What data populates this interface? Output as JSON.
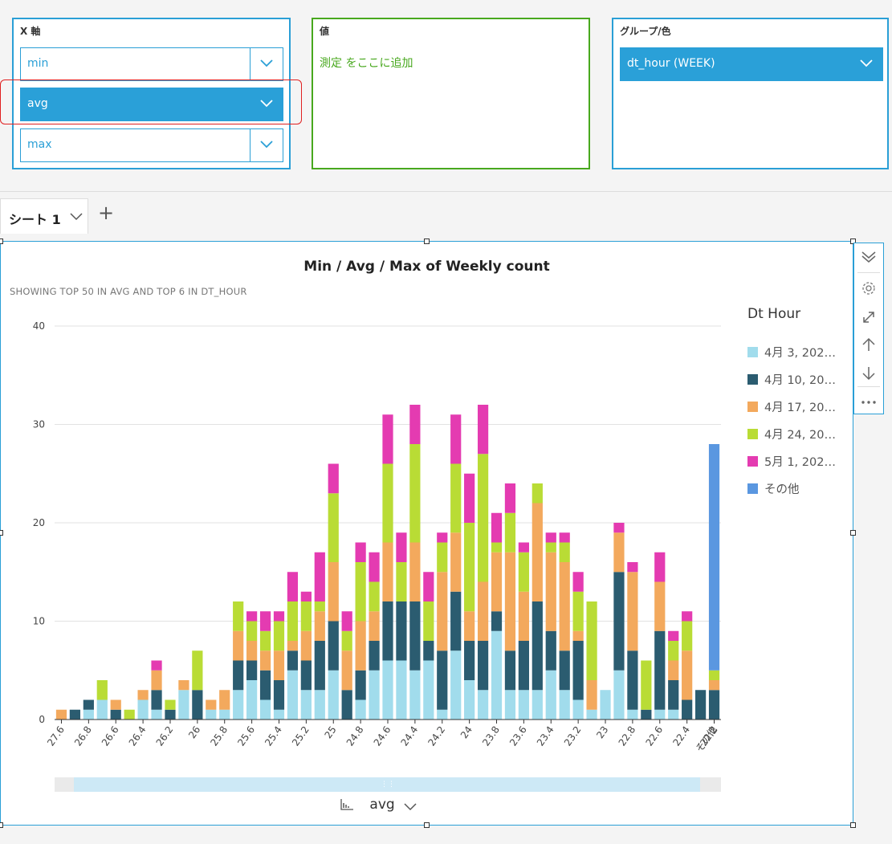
{
  "wells": {
    "xaxis": {
      "title": "X 軸",
      "fields": [
        "min",
        "avg",
        "max"
      ],
      "selected": "avg"
    },
    "value": {
      "title": "値",
      "placeholder": "測定 をここに追加"
    },
    "group": {
      "title": "グループ/色",
      "field": "dt_hour (WEEK)"
    }
  },
  "sheets": {
    "tabs": [
      "シート 1"
    ],
    "add": "+"
  },
  "visual": {
    "title": "Min / Avg / Max of Weekly count",
    "subtitle": "SHOWING TOP 50 IN AVG AND TOP 6 IN DT_HOUR",
    "field_selector": "avg",
    "legend_title": "Dt Hour",
    "legend": [
      {
        "label": "4月 3, 202…",
        "color": "#a1dcec"
      },
      {
        "label": "4月 10, 20…",
        "color": "#2b5c70"
      },
      {
        "label": "4月 17, 20…",
        "color": "#f3a95d"
      },
      {
        "label": "4月 24, 20…",
        "color": "#b9dc35"
      },
      {
        "label": "5月 1, 202…",
        "color": "#e43bb1"
      },
      {
        "label": "その他",
        "color": "#5a97e0"
      }
    ]
  },
  "colors": {
    "accent": "#2a9fd6",
    "value_well": "#48a81e",
    "highlight": "#e02020"
  },
  "chart_data": {
    "type": "bar",
    "stacked": true,
    "title": "Min / Avg / Max of Weekly count",
    "ylim": [
      0,
      40
    ],
    "yticks": [
      0,
      10,
      20,
      30,
      40
    ],
    "grid": true,
    "legend_position": "right",
    "xtick_labels": [
      "27.6",
      "26.8",
      "26.6",
      "26.4",
      "26.2",
      "26",
      "25.8",
      "25.6",
      "25.4",
      "25.2",
      "25",
      "24.8",
      "24.6",
      "24.4",
      "24.2",
      "24",
      "23.8",
      "23.6",
      "23.4",
      "23.2",
      "23",
      "22.8",
      "22.6",
      "22.4",
      "22.2",
      "その他"
    ],
    "series": [
      {
        "name": "4月 3, 202…",
        "values": [
          0,
          0,
          1,
          2,
          0,
          0,
          2,
          1,
          0,
          3,
          0,
          1,
          1,
          3,
          4,
          2,
          1,
          5,
          3,
          3,
          5,
          0,
          2,
          5,
          6,
          6,
          5,
          6,
          1,
          7,
          4,
          3,
          9,
          3,
          3,
          3,
          5,
          3,
          2,
          1,
          3,
          5,
          1,
          0,
          1,
          1,
          0,
          0,
          0
        ]
      },
      {
        "name": "4月 10, 20…",
        "values": [
          0,
          1,
          1,
          0,
          1,
          0,
          0,
          2,
          1,
          0,
          3,
          0,
          0,
          3,
          2,
          3,
          3,
          2,
          3,
          5,
          5,
          3,
          3,
          3,
          6,
          6,
          7,
          2,
          6,
          6,
          4,
          5,
          2,
          4,
          5,
          9,
          4,
          4,
          6,
          0,
          0,
          10,
          6,
          1,
          8,
          3,
          2,
          3,
          3
        ]
      },
      {
        "name": "4月 17, 20…",
        "values": [
          1,
          0,
          0,
          0,
          1,
          0,
          1,
          2,
          0,
          1,
          0,
          1,
          2,
          3,
          2,
          2,
          3,
          1,
          3,
          3,
          6,
          4,
          5,
          3,
          6,
          0,
          6,
          0,
          8,
          6,
          3,
          6,
          6,
          10,
          5,
          10,
          8,
          9,
          1,
          3,
          0,
          4,
          8,
          0,
          5,
          2,
          5,
          0,
          1
        ]
      },
      {
        "name": "4月 24, 20…",
        "values": [
          0,
          0,
          0,
          2,
          0,
          1,
          0,
          0,
          1,
          0,
          4,
          0,
          0,
          3,
          2,
          2,
          3,
          4,
          3,
          1,
          7,
          2,
          6,
          3,
          8,
          4,
          10,
          4,
          3,
          7,
          9,
          13,
          1,
          4,
          4,
          2,
          1,
          2,
          4,
          8,
          0,
          0,
          0,
          5,
          0,
          2,
          3,
          0,
          1
        ]
      },
      {
        "name": "5月 1, 202…",
        "values": [
          0,
          0,
          0,
          0,
          0,
          0,
          0,
          1,
          0,
          0,
          0,
          0,
          0,
          0,
          1,
          2,
          1,
          3,
          1,
          5,
          3,
          2,
          2,
          3,
          5,
          3,
          4,
          3,
          1,
          5,
          5,
          5,
          3,
          3,
          1,
          0,
          1,
          1,
          2,
          0,
          0,
          1,
          1,
          0,
          3,
          1,
          1,
          0,
          0
        ]
      },
      {
        "name": "その他",
        "values": [
          0,
          0,
          0,
          0,
          0,
          0,
          0,
          0,
          0,
          0,
          0,
          0,
          0,
          0,
          0,
          0,
          0,
          0,
          0,
          0,
          0,
          0,
          0,
          0,
          0,
          0,
          0,
          0,
          0,
          0,
          0,
          0,
          0,
          0,
          0,
          0,
          0,
          0,
          0,
          0,
          0,
          0,
          0,
          0,
          0,
          0,
          0,
          0,
          23
        ]
      }
    ]
  }
}
